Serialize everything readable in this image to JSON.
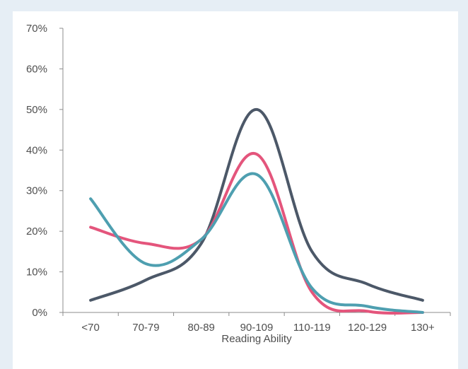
{
  "chart_data": {
    "type": "line",
    "title": "",
    "xlabel": "Reading Ability",
    "ylabel": "",
    "categories": [
      "<70",
      "70-79",
      "80-89",
      "90-109",
      "110-119",
      "120-129",
      "130+"
    ],
    "yticks": [
      "0%",
      "10%",
      "20%",
      "30%",
      "40%",
      "50%",
      "60%",
      "70%"
    ],
    "ylim": [
      0,
      70
    ],
    "grid": false,
    "legend": "none",
    "series": [
      {
        "color": "#4c5868",
        "values": [
          3,
          8,
          17,
          50,
          15,
          7,
          3
        ]
      },
      {
        "color": "#e4557c",
        "values": [
          21,
          17,
          18,
          39,
          5,
          0.3,
          0
        ]
      },
      {
        "color": "#4e9fb0",
        "values": [
          28,
          12,
          18,
          34,
          6,
          1.5,
          0
        ]
      }
    ]
  }
}
